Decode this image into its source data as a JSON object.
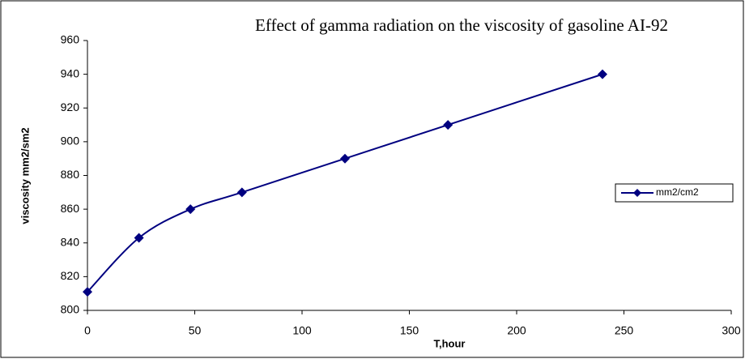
{
  "chart_data": {
    "type": "line",
    "title": "Effect of gamma radiation on the viscosity of gasoline AI-92",
    "x_label": "T,hour",
    "y_label": "viscosity mm2/sm2",
    "x": [
      0,
      24,
      48,
      72,
      120,
      168,
      240
    ],
    "series": [
      {
        "name": "mm2/cm2",
        "color": "#000080",
        "values": [
          811,
          843,
          860,
          870,
          890,
          910,
          940
        ]
      }
    ],
    "xlim": [
      0,
      300
    ],
    "xticks": [
      0,
      50,
      100,
      150,
      200,
      250,
      300
    ],
    "ylim": [
      800,
      960
    ],
    "yticks": [
      800,
      820,
      840,
      860,
      880,
      900,
      920,
      940,
      960
    ],
    "grid": false,
    "legend": "right",
    "smooth": true
  }
}
